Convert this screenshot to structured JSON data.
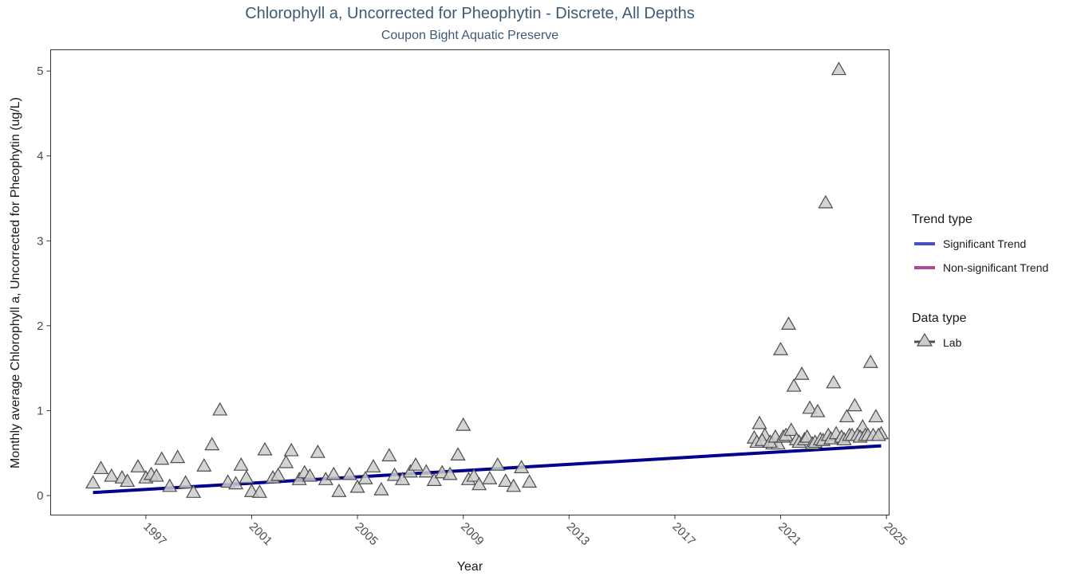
{
  "chart_data": {
    "type": "scatter",
    "title": "Chlorophyll a, Uncorrected for Pheophytin - Discrete, All Depths",
    "subtitle": "Coupon Bight Aquatic Preserve",
    "xlabel": "Year",
    "ylabel": "Monthly average Chlorophyll a, Uncorrected for Pheophytin (ug/L)",
    "xlim": [
      1993.4,
      2025.1
    ],
    "ylim": [
      -0.23,
      5.25
    ],
    "x_ticks": [
      1997,
      2001,
      2005,
      2009,
      2013,
      2017,
      2021,
      2025
    ],
    "x_tick_labels": [
      "1997",
      "2001",
      "2005",
      "2009",
      "2013",
      "2017",
      "2021",
      "2025"
    ],
    "y_ticks": [
      0,
      1,
      2,
      3,
      4,
      5
    ],
    "y_tick_labels": [
      "0",
      "1",
      "2",
      "3",
      "4",
      "5"
    ],
    "grid": false,
    "legend_position": "right",
    "legends": [
      {
        "title": "Trend type",
        "entries": [
          {
            "label": "Significant Trend",
            "color": "#4b4fc6"
          },
          {
            "label": "Non-significant Trend",
            "color": "#b0499a"
          }
        ]
      },
      {
        "title": "Data type",
        "entries": [
          {
            "label": "Lab",
            "marker": "triangle"
          }
        ]
      }
    ],
    "series": [
      {
        "name": "Lab",
        "marker": "triangle",
        "fill": "#cccccc",
        "stroke": "#4d4d4d",
        "x": [
          1995.0,
          1995.3,
          1995.7,
          1996.1,
          1996.3,
          1996.7,
          1997.0,
          1997.2,
          1997.4,
          1997.6,
          1997.9,
          1998.2,
          1998.5,
          1998.8,
          1999.2,
          1999.5,
          1999.8,
          2000.1,
          2000.4,
          2000.6,
          2000.8,
          2001.0,
          2001.3,
          2001.5,
          2001.8,
          2002.0,
          2002.3,
          2002.5,
          2002.8,
          2003.0,
          2003.2,
          2003.5,
          2003.8,
          2004.1,
          2004.3,
          2004.7,
          2005.0,
          2005.3,
          2005.6,
          2005.9,
          2006.2,
          2006.4,
          2006.7,
          2007.0,
          2007.2,
          2007.6,
          2007.9,
          2008.2,
          2008.5,
          2008.8,
          2009.0,
          2009.2,
          2009.4,
          2009.6,
          2010.0,
          2010.3,
          2010.6,
          2010.9,
          2011.2,
          2011.5,
          2020.0,
          2020.2,
          2020.4,
          2020.7,
          2020.9,
          2021.0,
          2021.3,
          2021.5,
          2021.8,
          2022.1,
          2022.4,
          2022.7,
          2023.0,
          2023.2,
          2023.5,
          2023.8,
          2024.1,
          2024.4,
          2024.6,
          2024.8,
          2020.1,
          2020.3,
          2020.6,
          2020.8,
          2021.1,
          2021.2,
          2021.4,
          2021.6,
          2021.7,
          2021.9,
          2022.0,
          2022.2,
          2022.3,
          2022.5,
          2022.6,
          2022.8,
          2022.9,
          2023.1,
          2023.3,
          2023.4,
          2023.6,
          2023.7,
          2023.9,
          2024.0,
          2024.2,
          2024.3,
          2024.5,
          2024.7
        ],
        "y": [
          0.14,
          0.31,
          0.22,
          0.2,
          0.16,
          0.33,
          0.2,
          0.24,
          0.22,
          0.42,
          0.1,
          0.44,
          0.14,
          0.03,
          0.34,
          0.59,
          1.0,
          0.15,
          0.13,
          0.35,
          0.2,
          0.04,
          0.03,
          0.53,
          0.2,
          0.23,
          0.38,
          0.52,
          0.18,
          0.26,
          0.22,
          0.5,
          0.18,
          0.24,
          0.04,
          0.24,
          0.09,
          0.19,
          0.33,
          0.06,
          0.46,
          0.23,
          0.18,
          0.27,
          0.35,
          0.27,
          0.17,
          0.26,
          0.24,
          0.47,
          0.82,
          0.18,
          0.22,
          0.12,
          0.19,
          0.35,
          0.16,
          0.1,
          0.32,
          0.15,
          0.67,
          0.84,
          0.7,
          0.6,
          0.6,
          1.71,
          2.01,
          1.28,
          1.42,
          1.02,
          0.98,
          3.44,
          1.32,
          5.01,
          0.92,
          1.05,
          0.8,
          1.56,
          0.92,
          0.72,
          0.62,
          0.64,
          0.62,
          0.68,
          0.68,
          0.7,
          0.76,
          0.65,
          0.62,
          0.65,
          0.68,
          0.6,
          0.62,
          0.65,
          0.64,
          0.7,
          0.66,
          0.72,
          0.68,
          0.65,
          0.7,
          0.7,
          0.7,
          0.68,
          0.7,
          0.7,
          0.7,
          0.7
        ]
      },
      {
        "name": "Significant Trend",
        "type": "line",
        "color": "#00008b",
        "x": [
          1995.0,
          2024.8
        ],
        "y": [
          0.035,
          0.585
        ]
      }
    ]
  }
}
